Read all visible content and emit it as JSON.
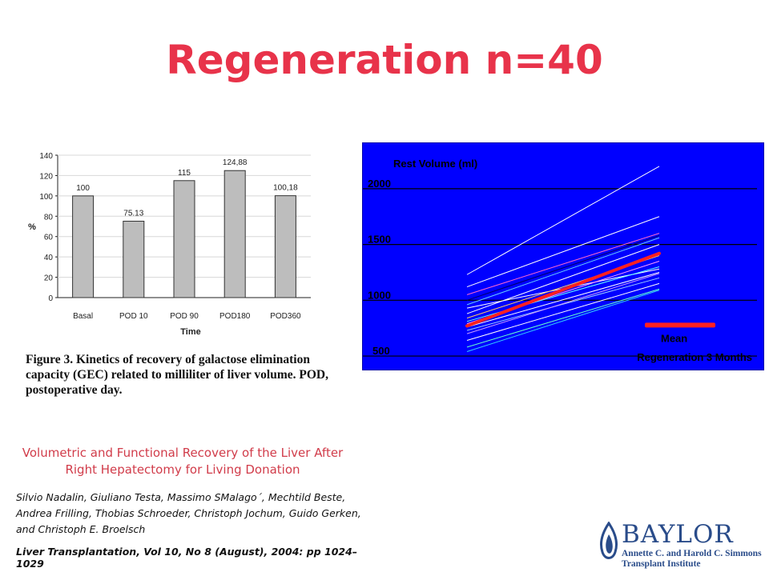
{
  "slide": {
    "title": "Regeneration n=40",
    "paper_title": "Volumetric and Functional Recovery of the Liver After Right Hepatectomy for Living Donation",
    "authors": "Silvio Nadalin, Giuliano Testa, Massimo SMalago´, Mechtild Beste, Andrea Frilling, Thobias Schroeder, Christoph Jochum, Guido Gerken, and Christoph E. Broelsch",
    "journal": "Liver Transplantation, Vol 10, No 8 (August), 2004: pp 1024–1029",
    "figure_caption": "Figure 3. Kinetics of recovery of galactose elimination capacity (GEC) related to milliliter of liver volume. POD, postoperative day.",
    "logo": {
      "name": "BAYLOR",
      "subtitle_line1": "Annette C. and Harold C. Simmons",
      "subtitle_line2": "Transplant Institute",
      "icon": "flame-drop-icon",
      "color": "#2a4c8a"
    },
    "title_color": "#e8334a"
  },
  "chart_data": [
    {
      "type": "bar",
      "categories": [
        "Basal",
        "POD 10",
        "POD 90",
        "POD180",
        "POD360"
      ],
      "values": [
        100,
        75.13,
        115,
        124.88,
        100.18
      ],
      "value_labels": [
        "100",
        "75.13",
        "115",
        "124,88",
        "100,18"
      ],
      "ylabel": "%",
      "xlabel": "Time",
      "ylim": [
        0,
        140
      ],
      "yticks": [
        0,
        20,
        40,
        60,
        80,
        100,
        120,
        140
      ],
      "bar_color": "#bdbdbd"
    },
    {
      "type": "line",
      "title": "Rest Volume (ml)",
      "subtitle": "Regeneration 3 Months",
      "legend_label": "Mean",
      "ytick_labels": [
        "2000",
        "1500",
        "1000",
        "500"
      ],
      "yticks": [
        2000,
        1500,
        1000,
        500
      ],
      "ylim": [
        400,
        2250
      ],
      "background": "#0000ff",
      "mean_color": "#ff2020",
      "series": [
        {
          "values": [
            1230,
            2200
          ],
          "color": "#ffffff"
        },
        {
          "values": [
            1120,
            1750
          ],
          "color": "#ffffff"
        },
        {
          "values": [
            1050,
            1600
          ],
          "color": "#ff66cc"
        },
        {
          "values": [
            1000,
            1580
          ],
          "color": "#000066"
        },
        {
          "values": [
            960,
            1560
          ],
          "color": "#66ccff"
        },
        {
          "values": [
            930,
            1280
          ],
          "color": "#ffffff"
        },
        {
          "values": [
            880,
            1500
          ],
          "color": "#ffffff"
        },
        {
          "values": [
            840,
            1400
          ],
          "color": "#ffcc66"
        },
        {
          "values": [
            810,
            1300
          ],
          "color": "#66ffff"
        },
        {
          "values": [
            790,
            1350
          ],
          "color": "#ff99ff"
        },
        {
          "values": [
            760,
            1250
          ],
          "color": "#ffffff"
        },
        {
          "values": [
            730,
            1200
          ],
          "color": "#99ccff"
        },
        {
          "values": [
            700,
            1240
          ],
          "color": "#cc99ff"
        },
        {
          "values": [
            640,
            1150
          ],
          "color": "#ffffff"
        },
        {
          "values": [
            580,
            1100
          ],
          "color": "#66ffcc"
        },
        {
          "values": [
            540,
            1090
          ],
          "color": "#33ccff"
        }
      ],
      "mean": {
        "values": [
          770,
          1420
        ]
      }
    }
  ]
}
